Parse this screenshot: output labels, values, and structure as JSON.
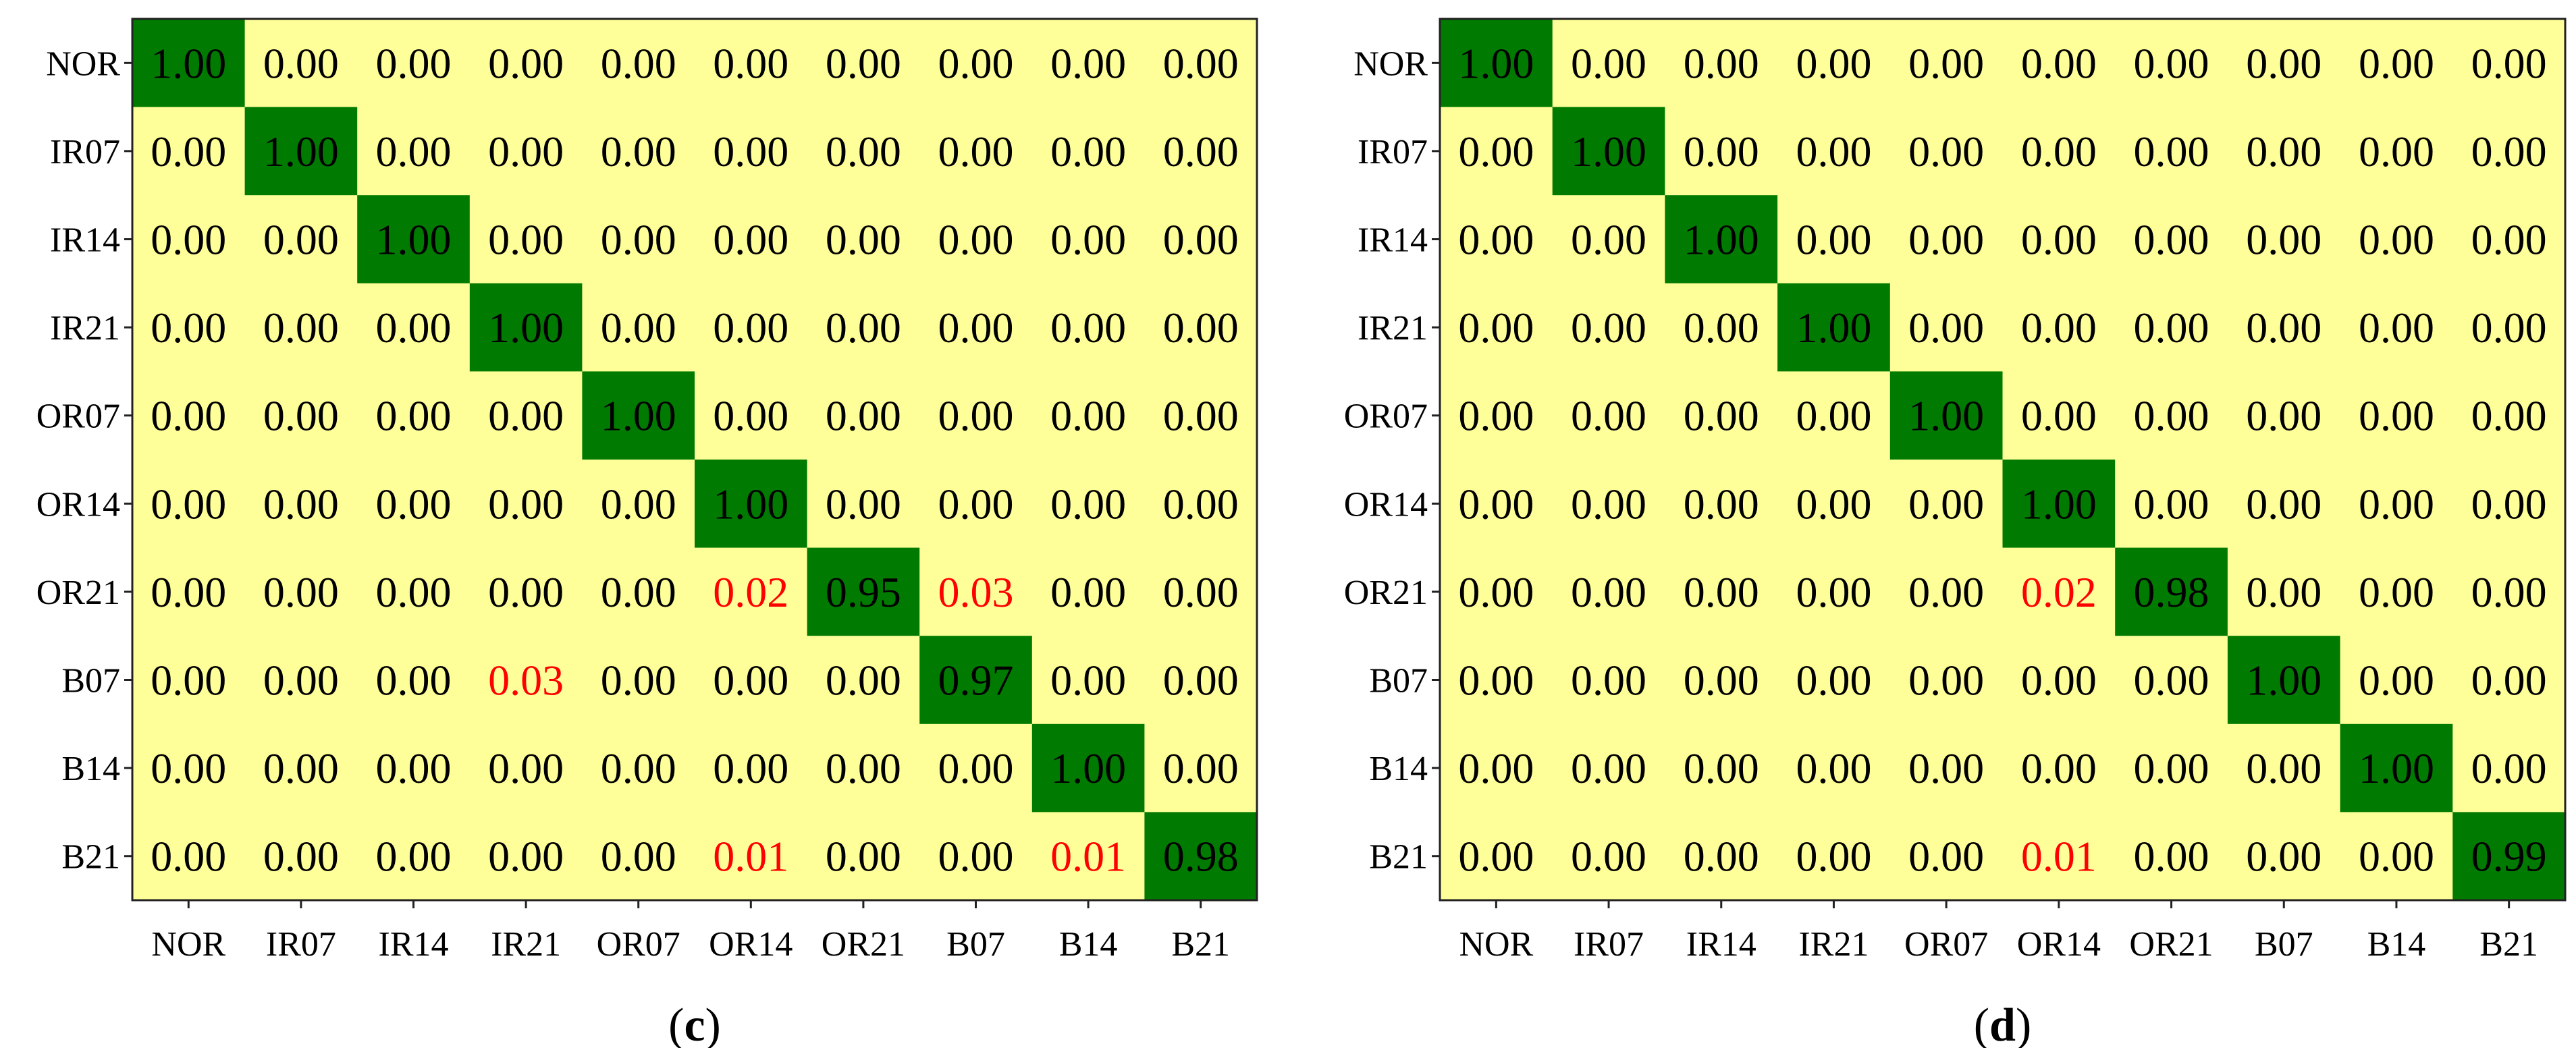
{
  "chart_data": [
    {
      "type": "heatmap",
      "panel_label": {
        "open": "(",
        "letter": "c",
        "close": ")"
      },
      "row_labels": [
        "NOR",
        "IR07",
        "IR14",
        "IR21",
        "OR07",
        "OR14",
        "OR21",
        "B07",
        "B14",
        "B21"
      ],
      "col_labels": [
        "NOR",
        "IR07",
        "IR14",
        "IR21",
        "OR07",
        "OR14",
        "OR21",
        "B07",
        "B14",
        "B21"
      ],
      "values": [
        [
          1.0,
          0.0,
          0.0,
          0.0,
          0.0,
          0.0,
          0.0,
          0.0,
          0.0,
          0.0
        ],
        [
          0.0,
          1.0,
          0.0,
          0.0,
          0.0,
          0.0,
          0.0,
          0.0,
          0.0,
          0.0
        ],
        [
          0.0,
          0.0,
          1.0,
          0.0,
          0.0,
          0.0,
          0.0,
          0.0,
          0.0,
          0.0
        ],
        [
          0.0,
          0.0,
          0.0,
          1.0,
          0.0,
          0.0,
          0.0,
          0.0,
          0.0,
          0.0
        ],
        [
          0.0,
          0.0,
          0.0,
          0.0,
          1.0,
          0.0,
          0.0,
          0.0,
          0.0,
          0.0
        ],
        [
          0.0,
          0.0,
          0.0,
          0.0,
          0.0,
          1.0,
          0.0,
          0.0,
          0.0,
          0.0
        ],
        [
          0.0,
          0.0,
          0.0,
          0.0,
          0.0,
          0.02,
          0.95,
          0.03,
          0.0,
          0.0
        ],
        [
          0.0,
          0.0,
          0.0,
          0.03,
          0.0,
          0.0,
          0.0,
          0.97,
          0.0,
          0.0
        ],
        [
          0.0,
          0.0,
          0.0,
          0.0,
          0.0,
          0.0,
          0.0,
          0.0,
          1.0,
          0.0
        ],
        [
          0.0,
          0.0,
          0.0,
          0.0,
          0.0,
          0.01,
          0.0,
          0.0,
          0.01,
          0.98
        ]
      ]
    },
    {
      "type": "heatmap",
      "panel_label": {
        "open": "(",
        "letter": "d",
        "close": ")"
      },
      "row_labels": [
        "NOR",
        "IR07",
        "IR14",
        "IR21",
        "OR07",
        "OR14",
        "OR21",
        "B07",
        "B14",
        "B21"
      ],
      "col_labels": [
        "NOR",
        "IR07",
        "IR14",
        "IR21",
        "OR07",
        "OR14",
        "OR21",
        "B07",
        "B14",
        "B21"
      ],
      "values": [
        [
          1.0,
          0.0,
          0.0,
          0.0,
          0.0,
          0.0,
          0.0,
          0.0,
          0.0,
          0.0
        ],
        [
          0.0,
          1.0,
          0.0,
          0.0,
          0.0,
          0.0,
          0.0,
          0.0,
          0.0,
          0.0
        ],
        [
          0.0,
          0.0,
          1.0,
          0.0,
          0.0,
          0.0,
          0.0,
          0.0,
          0.0,
          0.0
        ],
        [
          0.0,
          0.0,
          0.0,
          1.0,
          0.0,
          0.0,
          0.0,
          0.0,
          0.0,
          0.0
        ],
        [
          0.0,
          0.0,
          0.0,
          0.0,
          1.0,
          0.0,
          0.0,
          0.0,
          0.0,
          0.0
        ],
        [
          0.0,
          0.0,
          0.0,
          0.0,
          0.0,
          1.0,
          0.0,
          0.0,
          0.0,
          0.0
        ],
        [
          0.0,
          0.0,
          0.0,
          0.0,
          0.0,
          0.02,
          0.98,
          0.0,
          0.0,
          0.0
        ],
        [
          0.0,
          0.0,
          0.0,
          0.0,
          0.0,
          0.0,
          0.0,
          1.0,
          0.0,
          0.0
        ],
        [
          0.0,
          0.0,
          0.0,
          0.0,
          0.0,
          0.0,
          0.0,
          0.0,
          1.0,
          0.0
        ],
        [
          0.0,
          0.0,
          0.0,
          0.0,
          0.0,
          0.01,
          0.0,
          0.0,
          0.0,
          0.99
        ]
      ]
    }
  ],
  "colors": {
    "background": "#ffff99",
    "diagonal": "#007a00",
    "text_normal": "#000000",
    "text_misclassified": "#ff0000",
    "border": "#222222"
  }
}
